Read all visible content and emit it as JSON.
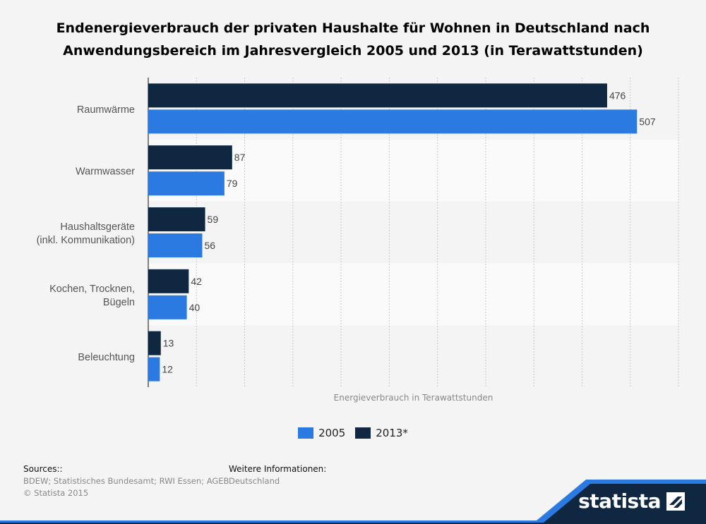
{
  "title_lines": [
    "Endenergieverbrauch der privaten Haushalte für Wohnen in Deutschland nach",
    "Anwendungsbereich im Jahresvergleich 2005 und 2013 (in Terawattstunden)"
  ],
  "colors": {
    "series_2013": "#0f2741",
    "series_2005": "#2a7ae2",
    "band_dark": "#0f2741",
    "band_light": "#2a7ae2"
  },
  "chart_data": {
    "type": "bar",
    "orientation": "horizontal",
    "title": "Endenergieverbrauch der privaten Haushalte für Wohnen in Deutschland nach Anwendungsbereich im Jahresvergleich 2005 und 2013 (in Terawattstunden)",
    "xlabel": "Energieverbrauch in Terawattstunden",
    "xlim": [
      0,
      550
    ],
    "grid": true,
    "categories": [
      [
        "Raumwärme"
      ],
      [
        "Warmwasser"
      ],
      [
        "Haushaltsgeräte",
        "(inkl. Kommunikation)"
      ],
      [
        "Kochen, Trocknen,",
        "Bügeln"
      ],
      [
        "Beleuchtung"
      ]
    ],
    "series": [
      {
        "name": "2013*",
        "values": [
          476,
          87,
          59,
          42,
          13
        ]
      },
      {
        "name": "2005",
        "values": [
          507,
          79,
          56,
          40,
          12
        ]
      }
    ],
    "legend": [
      "2005",
      "2013*"
    ],
    "legend_position": "bottom"
  },
  "sources": {
    "heading": "Sources::",
    "line1": "BDEW; Statistisches Bundesamt; RWI Essen; AGEB",
    "line2": "© Statista 2015"
  },
  "more_info": {
    "heading": "Weitere Informationen:",
    "value": "Deutschland"
  },
  "logo_text": "statista"
}
